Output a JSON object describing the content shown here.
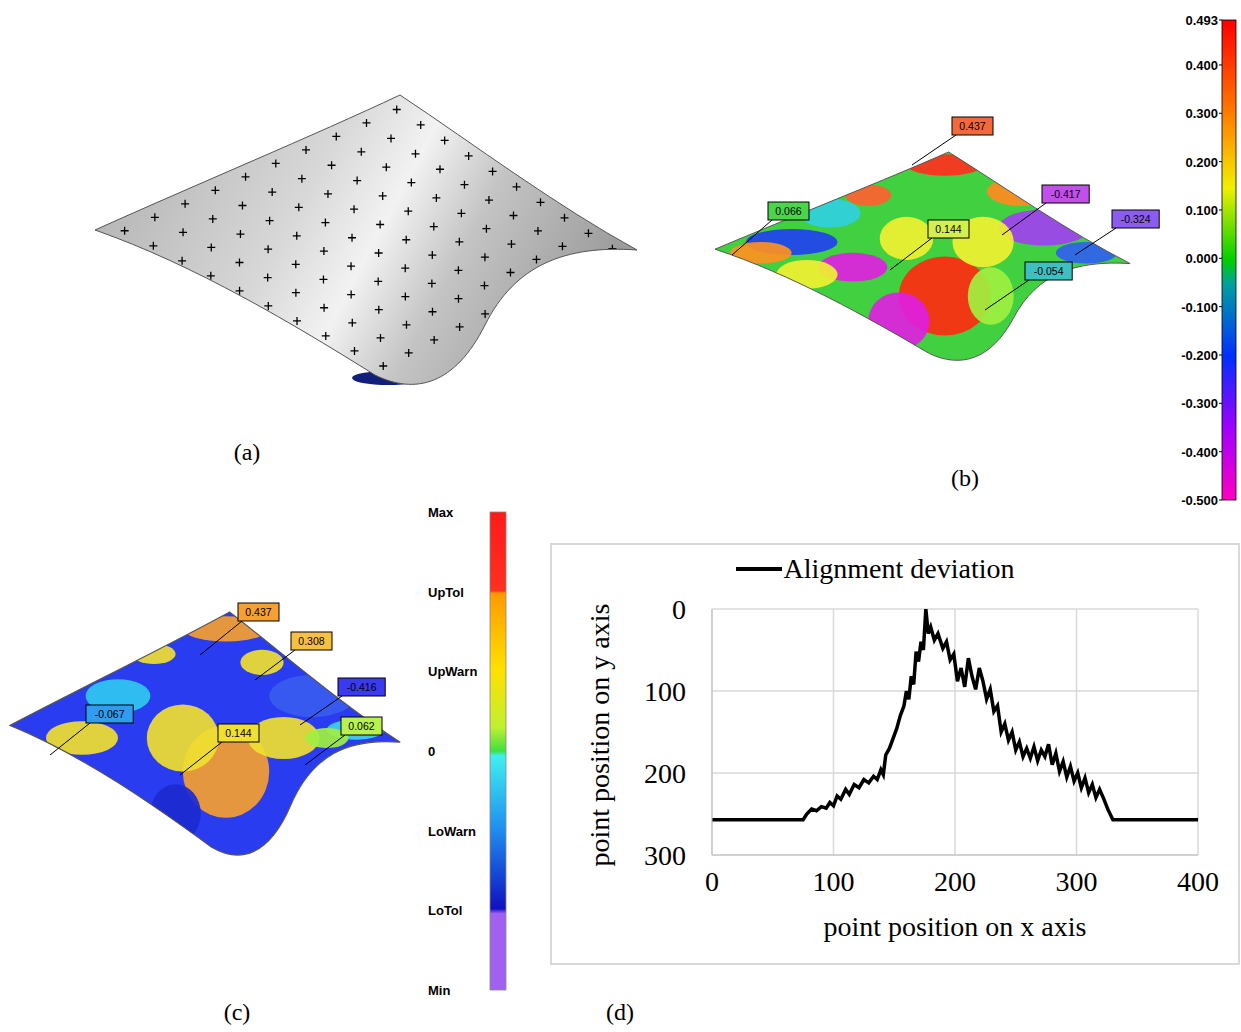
{
  "panels": [
    {
      "panel_label": "(a)"
    },
    {
      "panel_label": "(b)",
      "annotations": [
        {
          "value": 0.437,
          "color": "#f26a3c"
        },
        {
          "value": 0.066,
          "color": "#4cd44c"
        },
        {
          "value": 0.144,
          "color": "#d4f050"
        },
        {
          "value": -0.417,
          "color": "#c050e8"
        },
        {
          "value": -0.324,
          "color": "#8a5cf0"
        },
        {
          "value": -0.054,
          "color": "#3cc0c0"
        }
      ],
      "color_bar": {
        "range": [
          -0.5,
          0.493
        ],
        "ticks": [
          0.493,
          {
            "value": 0.4,
            "label": "0.400"
          },
          {
            "value": 0.3,
            "label": "0.300"
          },
          {
            "value": 0.2,
            "label": "0.200"
          },
          {
            "value": 0.1,
            "label": "0.100"
          },
          {
            "value": 0,
            "label": "0.000"
          },
          {
            "value": -0.1,
            "label": "-0.100"
          },
          {
            "value": -0.2,
            "label": "-0.200"
          },
          {
            "value": -0.3,
            "label": "-0.300"
          },
          {
            "value": -0.4,
            "label": "-0.400"
          },
          {
            "value": -0.5,
            "label": "-0.500"
          }
        ]
      }
    },
    {
      "panel_label": "(c)",
      "annotations": [
        {
          "value": 0.437,
          "color": "#f5a030"
        },
        {
          "value": 0.308,
          "color": "#f7c040"
        },
        {
          "value": -0.416,
          "color": "#3a3af0"
        },
        {
          "value": 0.062,
          "color": "#b8f050"
        },
        {
          "value": -0.067,
          "color": "#2e9cf0"
        },
        {
          "value": 0.144,
          "color": "#f0e030"
        }
      ],
      "color_bar_labels": [
        "Max",
        "UpTol",
        "UpWarn",
        "0",
        "LoWarn",
        "LoTol",
        "Min"
      ]
    }
  ],
  "chart_data": {
    "type": "line",
    "panel_label": "(d)",
    "x_label": "point position on x axis",
    "y_label": "point position on y axis",
    "xlim": [
      0,
      400
    ],
    "xticks": [
      0,
      100,
      200,
      300,
      400
    ],
    "ylim": [
      300,
      0
    ],
    "yticks": [
      0,
      100,
      200,
      300
    ],
    "grid": true,
    "legend": "top",
    "series": [
      {
        "name": "Alignment deviation",
        "color": "#000000",
        "x": [
          0,
          20,
          40,
          60,
          75,
          78,
          82,
          86,
          90,
          94,
          97,
          100,
          103,
          106,
          110,
          113,
          117,
          121,
          125,
          129,
          133,
          136,
          139,
          141,
          143,
          146,
          149,
          152,
          155,
          158,
          160,
          162,
          164,
          166,
          168,
          170,
          172,
          174,
          176,
          178,
          180,
          183,
          186,
          190,
          193,
          196,
          199,
          202,
          205,
          208,
          211,
          214,
          217,
          220,
          223,
          226,
          229,
          232,
          235,
          238,
          241,
          244,
          247,
          250,
          253,
          256,
          259,
          262,
          265,
          268,
          271,
          274,
          277,
          280,
          283,
          286,
          289,
          292,
          295,
          298,
          301,
          304,
          307,
          310,
          313,
          316,
          319,
          322,
          326,
          330,
          350,
          375,
          400
        ],
        "values": [
          257,
          257,
          257,
          257,
          257,
          250,
          244,
          246,
          241,
          243,
          236,
          240,
          228,
          232,
          220,
          226,
          214,
          218,
          208,
          212,
          204,
          208,
          196,
          202,
          178,
          170,
          158,
          146,
          130,
          118,
          100,
          110,
          82,
          92,
          52,
          64,
          40,
          50,
          0,
          30,
          22,
          38,
          30,
          48,
          40,
          62,
          55,
          88,
          72,
          95,
          60,
          82,
          98,
          72,
          88,
          110,
          98,
          125,
          118,
          150,
          140,
          160,
          150,
          172,
          162,
          180,
          170,
          182,
          168,
          185,
          172,
          180,
          165,
          190,
          176,
          198,
          186,
          205,
          192,
          210,
          200,
          218,
          206,
          224,
          214,
          230,
          220,
          230,
          245,
          257,
          257,
          257,
          257
        ]
      }
    ]
  }
}
